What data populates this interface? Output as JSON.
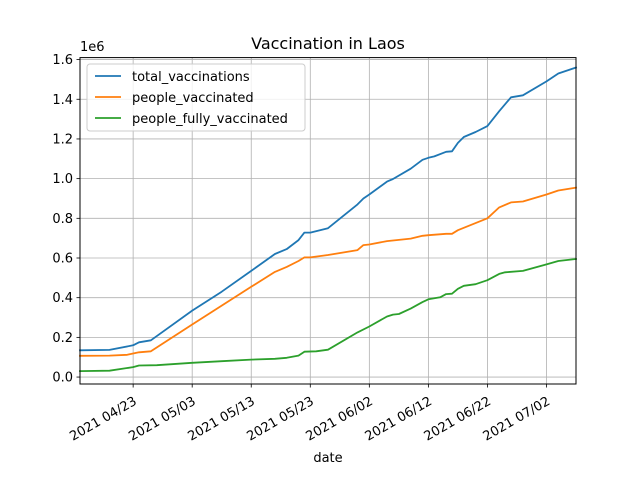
{
  "chart_data": {
    "type": "line",
    "title": "Vaccination in Laos",
    "xlabel": "date",
    "ylabel": "",
    "y_offset_label": "1e6",
    "grid": true,
    "legend_position": "top-left",
    "x_range": [
      "2021-04-14",
      "2021-07-07"
    ],
    "ylim": [
      -35000,
      1610000
    ],
    "x_ticks": [
      "2021-04-23",
      "2021-05-03",
      "2021-05-13",
      "2021-05-23",
      "2021-06-02",
      "2021-06-12",
      "2021-06-22",
      "2021-07-02"
    ],
    "x_tick_labels": [
      "2021 04/23",
      "2021 05/03",
      "2021 05/13",
      "2021 05/23",
      "2021 06/02",
      "2021 06/12",
      "2021 06/22",
      "2021 07/02"
    ],
    "y_ticks": [
      0,
      200000,
      400000,
      600000,
      800000,
      1000000,
      1200000,
      1400000,
      1600000
    ],
    "y_tick_labels": [
      "0.0",
      "0.2",
      "0.4",
      "0.6",
      "0.8",
      "1.0",
      "1.2",
      "1.4",
      "1.6"
    ],
    "series": [
      {
        "name": "total_vaccinations",
        "color": "#1f77b4",
        "points": [
          [
            "2021-04-14",
            135000
          ],
          [
            "2021-04-19",
            137000
          ],
          [
            "2021-04-23",
            160000
          ],
          [
            "2021-04-24",
            175000
          ],
          [
            "2021-04-26",
            185000
          ],
          [
            "2021-05-03",
            335000
          ],
          [
            "2021-05-08",
            430000
          ],
          [
            "2021-05-13",
            535000
          ],
          [
            "2021-05-17",
            620000
          ],
          [
            "2021-05-19",
            645000
          ],
          [
            "2021-05-21",
            690000
          ],
          [
            "2021-05-22",
            728000
          ],
          [
            "2021-05-23",
            728000
          ],
          [
            "2021-05-26",
            750000
          ],
          [
            "2021-05-31",
            870000
          ],
          [
            "2021-06-01",
            900000
          ],
          [
            "2021-06-02",
            920000
          ],
          [
            "2021-06-05",
            985000
          ],
          [
            "2021-06-06",
            998000
          ],
          [
            "2021-06-09",
            1050000
          ],
          [
            "2021-06-11",
            1095000
          ],
          [
            "2021-06-12",
            1105000
          ],
          [
            "2021-06-13",
            1112000
          ],
          [
            "2021-06-15",
            1135000
          ],
          [
            "2021-06-16",
            1138000
          ],
          [
            "2021-06-17",
            1180000
          ],
          [
            "2021-06-18",
            1210000
          ],
          [
            "2021-06-20",
            1235000
          ],
          [
            "2021-06-22",
            1265000
          ],
          [
            "2021-06-24",
            1340000
          ],
          [
            "2021-06-26",
            1410000
          ],
          [
            "2021-06-28",
            1420000
          ],
          [
            "2021-07-02",
            1490000
          ],
          [
            "2021-07-04",
            1530000
          ],
          [
            "2021-07-05",
            1540000
          ],
          [
            "2021-07-07",
            1560000
          ]
        ]
      },
      {
        "name": "people_vaccinated",
        "color": "#ff7f0e",
        "points": [
          [
            "2021-04-14",
            107000
          ],
          [
            "2021-04-19",
            108000
          ],
          [
            "2021-04-22",
            112000
          ],
          [
            "2021-04-24",
            125000
          ],
          [
            "2021-04-26",
            130000
          ],
          [
            "2021-05-03",
            265000
          ],
          [
            "2021-05-08",
            360000
          ],
          [
            "2021-05-13",
            455000
          ],
          [
            "2021-05-17",
            530000
          ],
          [
            "2021-05-19",
            555000
          ],
          [
            "2021-05-21",
            585000
          ],
          [
            "2021-05-22",
            603000
          ],
          [
            "2021-05-23",
            603000
          ],
          [
            "2021-05-26",
            615000
          ],
          [
            "2021-05-31",
            640000
          ],
          [
            "2021-06-01",
            665000
          ],
          [
            "2021-06-02",
            668000
          ],
          [
            "2021-06-05",
            685000
          ],
          [
            "2021-06-09",
            698000
          ],
          [
            "2021-06-11",
            712000
          ],
          [
            "2021-06-12",
            715000
          ],
          [
            "2021-06-15",
            722000
          ],
          [
            "2021-06-16",
            722000
          ],
          [
            "2021-06-17",
            740000
          ],
          [
            "2021-06-22",
            800000
          ],
          [
            "2021-06-24",
            855000
          ],
          [
            "2021-06-26",
            880000
          ],
          [
            "2021-06-28",
            885000
          ],
          [
            "2021-07-02",
            920000
          ],
          [
            "2021-07-04",
            940000
          ],
          [
            "2021-07-07",
            955000
          ]
        ]
      },
      {
        "name": "people_fully_vaccinated",
        "color": "#2ca02c",
        "points": [
          [
            "2021-04-14",
            30000
          ],
          [
            "2021-04-19",
            32000
          ],
          [
            "2021-04-23",
            50000
          ],
          [
            "2021-04-24",
            58000
          ],
          [
            "2021-04-27",
            60000
          ],
          [
            "2021-05-03",
            72000
          ],
          [
            "2021-05-08",
            80000
          ],
          [
            "2021-05-13",
            88000
          ],
          [
            "2021-05-17",
            92000
          ],
          [
            "2021-05-19",
            97000
          ],
          [
            "2021-05-21",
            108000
          ],
          [
            "2021-05-22",
            128000
          ],
          [
            "2021-05-24",
            130000
          ],
          [
            "2021-05-26",
            138000
          ],
          [
            "2021-05-31",
            225000
          ],
          [
            "2021-06-02",
            255000
          ],
          [
            "2021-06-05",
            305000
          ],
          [
            "2021-06-06",
            315000
          ],
          [
            "2021-06-07",
            318000
          ],
          [
            "2021-06-09",
            345000
          ],
          [
            "2021-06-11",
            378000
          ],
          [
            "2021-06-12",
            392000
          ],
          [
            "2021-06-14",
            402000
          ],
          [
            "2021-06-15",
            418000
          ],
          [
            "2021-06-16",
            420000
          ],
          [
            "2021-06-17",
            445000
          ],
          [
            "2021-06-18",
            460000
          ],
          [
            "2021-06-20",
            468000
          ],
          [
            "2021-06-22",
            488000
          ],
          [
            "2021-06-24",
            520000
          ],
          [
            "2021-06-25",
            528000
          ],
          [
            "2021-06-28",
            535000
          ],
          [
            "2021-07-02",
            568000
          ],
          [
            "2021-07-04",
            585000
          ],
          [
            "2021-07-07",
            595000
          ]
        ]
      }
    ]
  }
}
